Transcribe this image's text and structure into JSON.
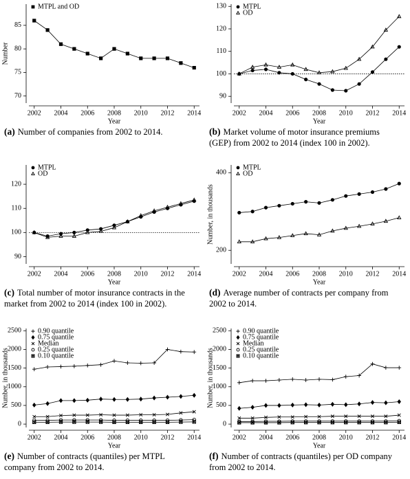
{
  "chart_data": [
    {
      "type": "line",
      "caption_label": "(a)",
      "caption": "Number of companies from 2002 to 2014.",
      "xlabel": "Year",
      "ylabel": "Number",
      "x": [
        2002,
        2003,
        2004,
        2005,
        2006,
        2007,
        2008,
        2009,
        2010,
        2011,
        2012,
        2013,
        2014
      ],
      "xlim": [
        2001.6,
        2014.4
      ],
      "xticks": [
        2002,
        2004,
        2006,
        2008,
        2010,
        2012,
        2014
      ],
      "ylim": [
        68.5,
        89.5
      ],
      "yticks": [
        70,
        75,
        80,
        85
      ],
      "series": [
        {
          "name": "MTPL and OD",
          "color": "#000000",
          "marker": "square",
          "values": [
            86,
            84,
            81,
            80,
            79,
            78,
            80,
            79,
            78,
            78,
            78,
            77,
            76
          ]
        }
      ]
    },
    {
      "type": "line",
      "caption_label": "(b)",
      "caption": "Market volume of motor insurance premiums (GEP) from 2002 to 2014 (index 100 in 2002).",
      "xlabel": "Year",
      "ref_line": 100,
      "x": [
        2002,
        2003,
        2004,
        2005,
        2006,
        2007,
        2008,
        2009,
        2010,
        2011,
        2012,
        2013,
        2014
      ],
      "xlim": [
        2001.6,
        2014.4
      ],
      "xticks": [
        2002,
        2004,
        2006,
        2008,
        2010,
        2012,
        2014
      ],
      "ylim": [
        87,
        131
      ],
      "yticks": [
        90,
        100,
        110,
        120,
        130
      ],
      "series": [
        {
          "name": "MTPL",
          "color": "#000000",
          "marker": "circle",
          "values": [
            100,
            101.5,
            102,
            100.5,
            100,
            97.5,
            95.5,
            92.8,
            92.5,
            95.5,
            100.8,
            106.5,
            112
          ]
        },
        {
          "name": "OD",
          "color": "#000000",
          "marker": "triangle",
          "values": [
            100,
            103,
            104,
            103,
            104,
            102,
            100.5,
            101,
            102.5,
            106.5,
            112,
            119.5,
            125.5
          ]
        }
      ]
    },
    {
      "type": "line",
      "caption_label": "(c)",
      "caption": "Total number of motor insurance contracts in the market from 2002 to 2014 (index 100 in 2002).",
      "xlabel": "Year",
      "ref_line": 100,
      "x": [
        2002,
        2003,
        2004,
        2005,
        2006,
        2007,
        2008,
        2009,
        2010,
        2011,
        2012,
        2013,
        2014
      ],
      "xlim": [
        2001.6,
        2014.4
      ],
      "xticks": [
        2002,
        2004,
        2006,
        2008,
        2010,
        2012,
        2014
      ],
      "ylim": [
        87,
        128
      ],
      "yticks": [
        90,
        100,
        110,
        120
      ],
      "series": [
        {
          "name": "MTPL",
          "color": "#000000",
          "marker": "circle",
          "values": [
            100,
            98.5,
            99.5,
            100,
            101,
            101.5,
            103,
            104.5,
            106.5,
            108.5,
            110,
            111.5,
            113
          ]
        },
        {
          "name": "OD",
          "color": "#000000",
          "marker": "triangle",
          "values": [
            100,
            98,
            98.5,
            98.5,
            100,
            100.5,
            102,
            104.5,
            107,
            109,
            110.5,
            112,
            113.5
          ]
        }
      ]
    },
    {
      "type": "line",
      "caption_label": "(d)",
      "caption": "Average number of contracts per company from 2002 to 2014.",
      "xlabel": "Year",
      "ylabel": "Number, in thousands",
      "x": [
        2002,
        2003,
        2004,
        2005,
        2006,
        2007,
        2008,
        2009,
        2010,
        2011,
        2012,
        2013,
        2014
      ],
      "xlim": [
        2001.6,
        2014.4
      ],
      "xticks": [
        2002,
        2004,
        2006,
        2008,
        2010,
        2012,
        2014
      ],
      "ylim": [
        165,
        420
      ],
      "yticks": [
        200,
        400
      ],
      "series": [
        {
          "name": "MTPL",
          "color": "#000000",
          "marker": "circle",
          "values": [
            297,
            300,
            310,
            315,
            320,
            325,
            322,
            330,
            340,
            345,
            350,
            358,
            372
          ]
        },
        {
          "name": "OD",
          "color": "#000000",
          "marker": "triangle",
          "values": [
            222,
            222,
            230,
            233,
            238,
            243,
            240,
            250,
            257,
            262,
            268,
            275,
            284
          ]
        }
      ]
    },
    {
      "type": "line",
      "caption_label": "(e)",
      "caption": "Number of contracts (quantiles) per MTPL company from 2002 to 2014.",
      "xlabel": "Year",
      "ylabel": "Number, in thousands",
      "x": [
        2002,
        2003,
        2004,
        2005,
        2006,
        2007,
        2008,
        2009,
        2010,
        2011,
        2012,
        2013,
        2014
      ],
      "xlim": [
        2001.6,
        2014.4
      ],
      "xticks": [
        2002,
        2004,
        2006,
        2008,
        2010,
        2012,
        2014
      ],
      "ylim": [
        -90,
        2560
      ],
      "yticks": [
        0,
        500,
        1000,
        1500,
        2000,
        2500
      ],
      "series": [
        {
          "name": "0.90 quantile",
          "color": "#000000",
          "marker": "plus",
          "values": [
            1470,
            1530,
            1540,
            1550,
            1570,
            1590,
            1690,
            1640,
            1630,
            1640,
            2000,
            1940,
            1930
          ]
        },
        {
          "name": "0.75 quantile",
          "color": "#000000",
          "marker": "diamond",
          "values": [
            510,
            550,
            630,
            630,
            640,
            670,
            660,
            660,
            670,
            700,
            720,
            740,
            770
          ]
        },
        {
          "name": "Median",
          "color": "#000000",
          "marker": "cross",
          "values": [
            200,
            200,
            230,
            240,
            240,
            250,
            240,
            240,
            250,
            250,
            260,
            300,
            330
          ]
        },
        {
          "name": "0.25 quantile",
          "color": "#000000",
          "marker": "ring",
          "values": [
            100,
            100,
            110,
            110,
            110,
            110,
            100,
            100,
            100,
            100,
            100,
            110,
            120
          ]
        },
        {
          "name": "0.10 quantile",
          "color": "#000000",
          "marker": "boxcross",
          "values": [
            50,
            50,
            55,
            55,
            55,
            55,
            50,
            50,
            50,
            50,
            50,
            55,
            60
          ]
        }
      ]
    },
    {
      "type": "line",
      "caption_label": "(f)",
      "caption": "Number of contracts (quantiles) per OD company from 2002 to 2014.",
      "xlabel": "Year",
      "ylabel": "Number, in thousands",
      "x": [
        2002,
        2003,
        2004,
        2005,
        2006,
        2007,
        2008,
        2009,
        2010,
        2011,
        2012,
        2013,
        2014
      ],
      "xlim": [
        2001.6,
        2014.4
      ],
      "xticks": [
        2002,
        2004,
        2006,
        2008,
        2010,
        2012,
        2014
      ],
      "ylim": [
        -90,
        2560
      ],
      "yticks": [
        0,
        500,
        1000,
        1500,
        2000,
        2500
      ],
      "series": [
        {
          "name": "0.90 quantile",
          "color": "#000000",
          "marker": "plus",
          "values": [
            1110,
            1160,
            1160,
            1180,
            1200,
            1180,
            1200,
            1190,
            1270,
            1300,
            1610,
            1510,
            1510
          ]
        },
        {
          "name": "0.75 quantile",
          "color": "#000000",
          "marker": "diamond",
          "values": [
            420,
            450,
            500,
            500,
            510,
            520,
            510,
            530,
            520,
            540,
            580,
            570,
            600
          ]
        },
        {
          "name": "Median",
          "color": "#000000",
          "marker": "cross",
          "values": [
            160,
            160,
            180,
            190,
            190,
            200,
            200,
            210,
            210,
            210,
            210,
            210,
            240
          ]
        },
        {
          "name": "0.25 quantile",
          "color": "#000000",
          "marker": "ring",
          "values": [
            70,
            70,
            75,
            75,
            80,
            80,
            80,
            80,
            80,
            80,
            80,
            80,
            90
          ]
        },
        {
          "name": "0.10 quantile",
          "color": "#000000",
          "marker": "boxcross",
          "values": [
            40,
            40,
            40,
            40,
            45,
            45,
            45,
            45,
            45,
            45,
            45,
            45,
            50
          ]
        }
      ]
    }
  ]
}
